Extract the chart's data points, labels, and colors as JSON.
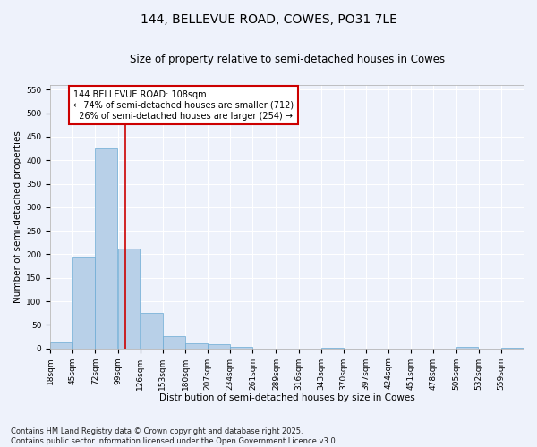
{
  "title": "144, BELLEVUE ROAD, COWES, PO31 7LE",
  "subtitle": "Size of property relative to semi-detached houses in Cowes",
  "xlabel": "Distribution of semi-detached houses by size in Cowes",
  "ylabel": "Number of semi-detached properties",
  "bins": [
    18,
    45,
    72,
    99,
    126,
    153,
    180,
    207,
    234,
    261,
    289,
    316,
    343,
    370,
    397,
    424,
    451,
    478,
    505,
    532,
    559
  ],
  "bin_labels": [
    "18sqm",
    "45sqm",
    "72sqm",
    "99sqm",
    "126sqm",
    "153sqm",
    "180sqm",
    "207sqm",
    "234sqm",
    "261sqm",
    "289sqm",
    "316sqm",
    "343sqm",
    "370sqm",
    "397sqm",
    "424sqm",
    "451sqm",
    "478sqm",
    "505sqm",
    "532sqm",
    "559sqm"
  ],
  "counts": [
    12,
    193,
    425,
    213,
    76,
    27,
    11,
    9,
    3,
    0,
    0,
    0,
    2,
    0,
    0,
    0,
    0,
    0,
    3,
    0,
    2
  ],
  "bar_color": "#b8d0e8",
  "bar_edge_color": "#6aaad4",
  "property_size": 108,
  "vline_color": "#cc0000",
  "annotation_line1": "144 BELLEVUE ROAD: 108sqm",
  "annotation_line2": "← 74% of semi-detached houses are smaller (712)",
  "annotation_line3": "  26% of semi-detached houses are larger (254) →",
  "annotation_box_color": "#ffffff",
  "annotation_box_edge": "#cc0000",
  "ylim": [
    0,
    560
  ],
  "yticks": [
    0,
    50,
    100,
    150,
    200,
    250,
    300,
    350,
    400,
    450,
    500,
    550
  ],
  "footer": "Contains HM Land Registry data © Crown copyright and database right 2025.\nContains public sector information licensed under the Open Government Licence v3.0.",
  "bg_color": "#eef2fb",
  "grid_color": "#ffffff",
  "title_fontsize": 10,
  "subtitle_fontsize": 8.5,
  "axis_label_fontsize": 7.5,
  "tick_fontsize": 6.5,
  "footer_fontsize": 6,
  "annotation_fontsize": 7
}
